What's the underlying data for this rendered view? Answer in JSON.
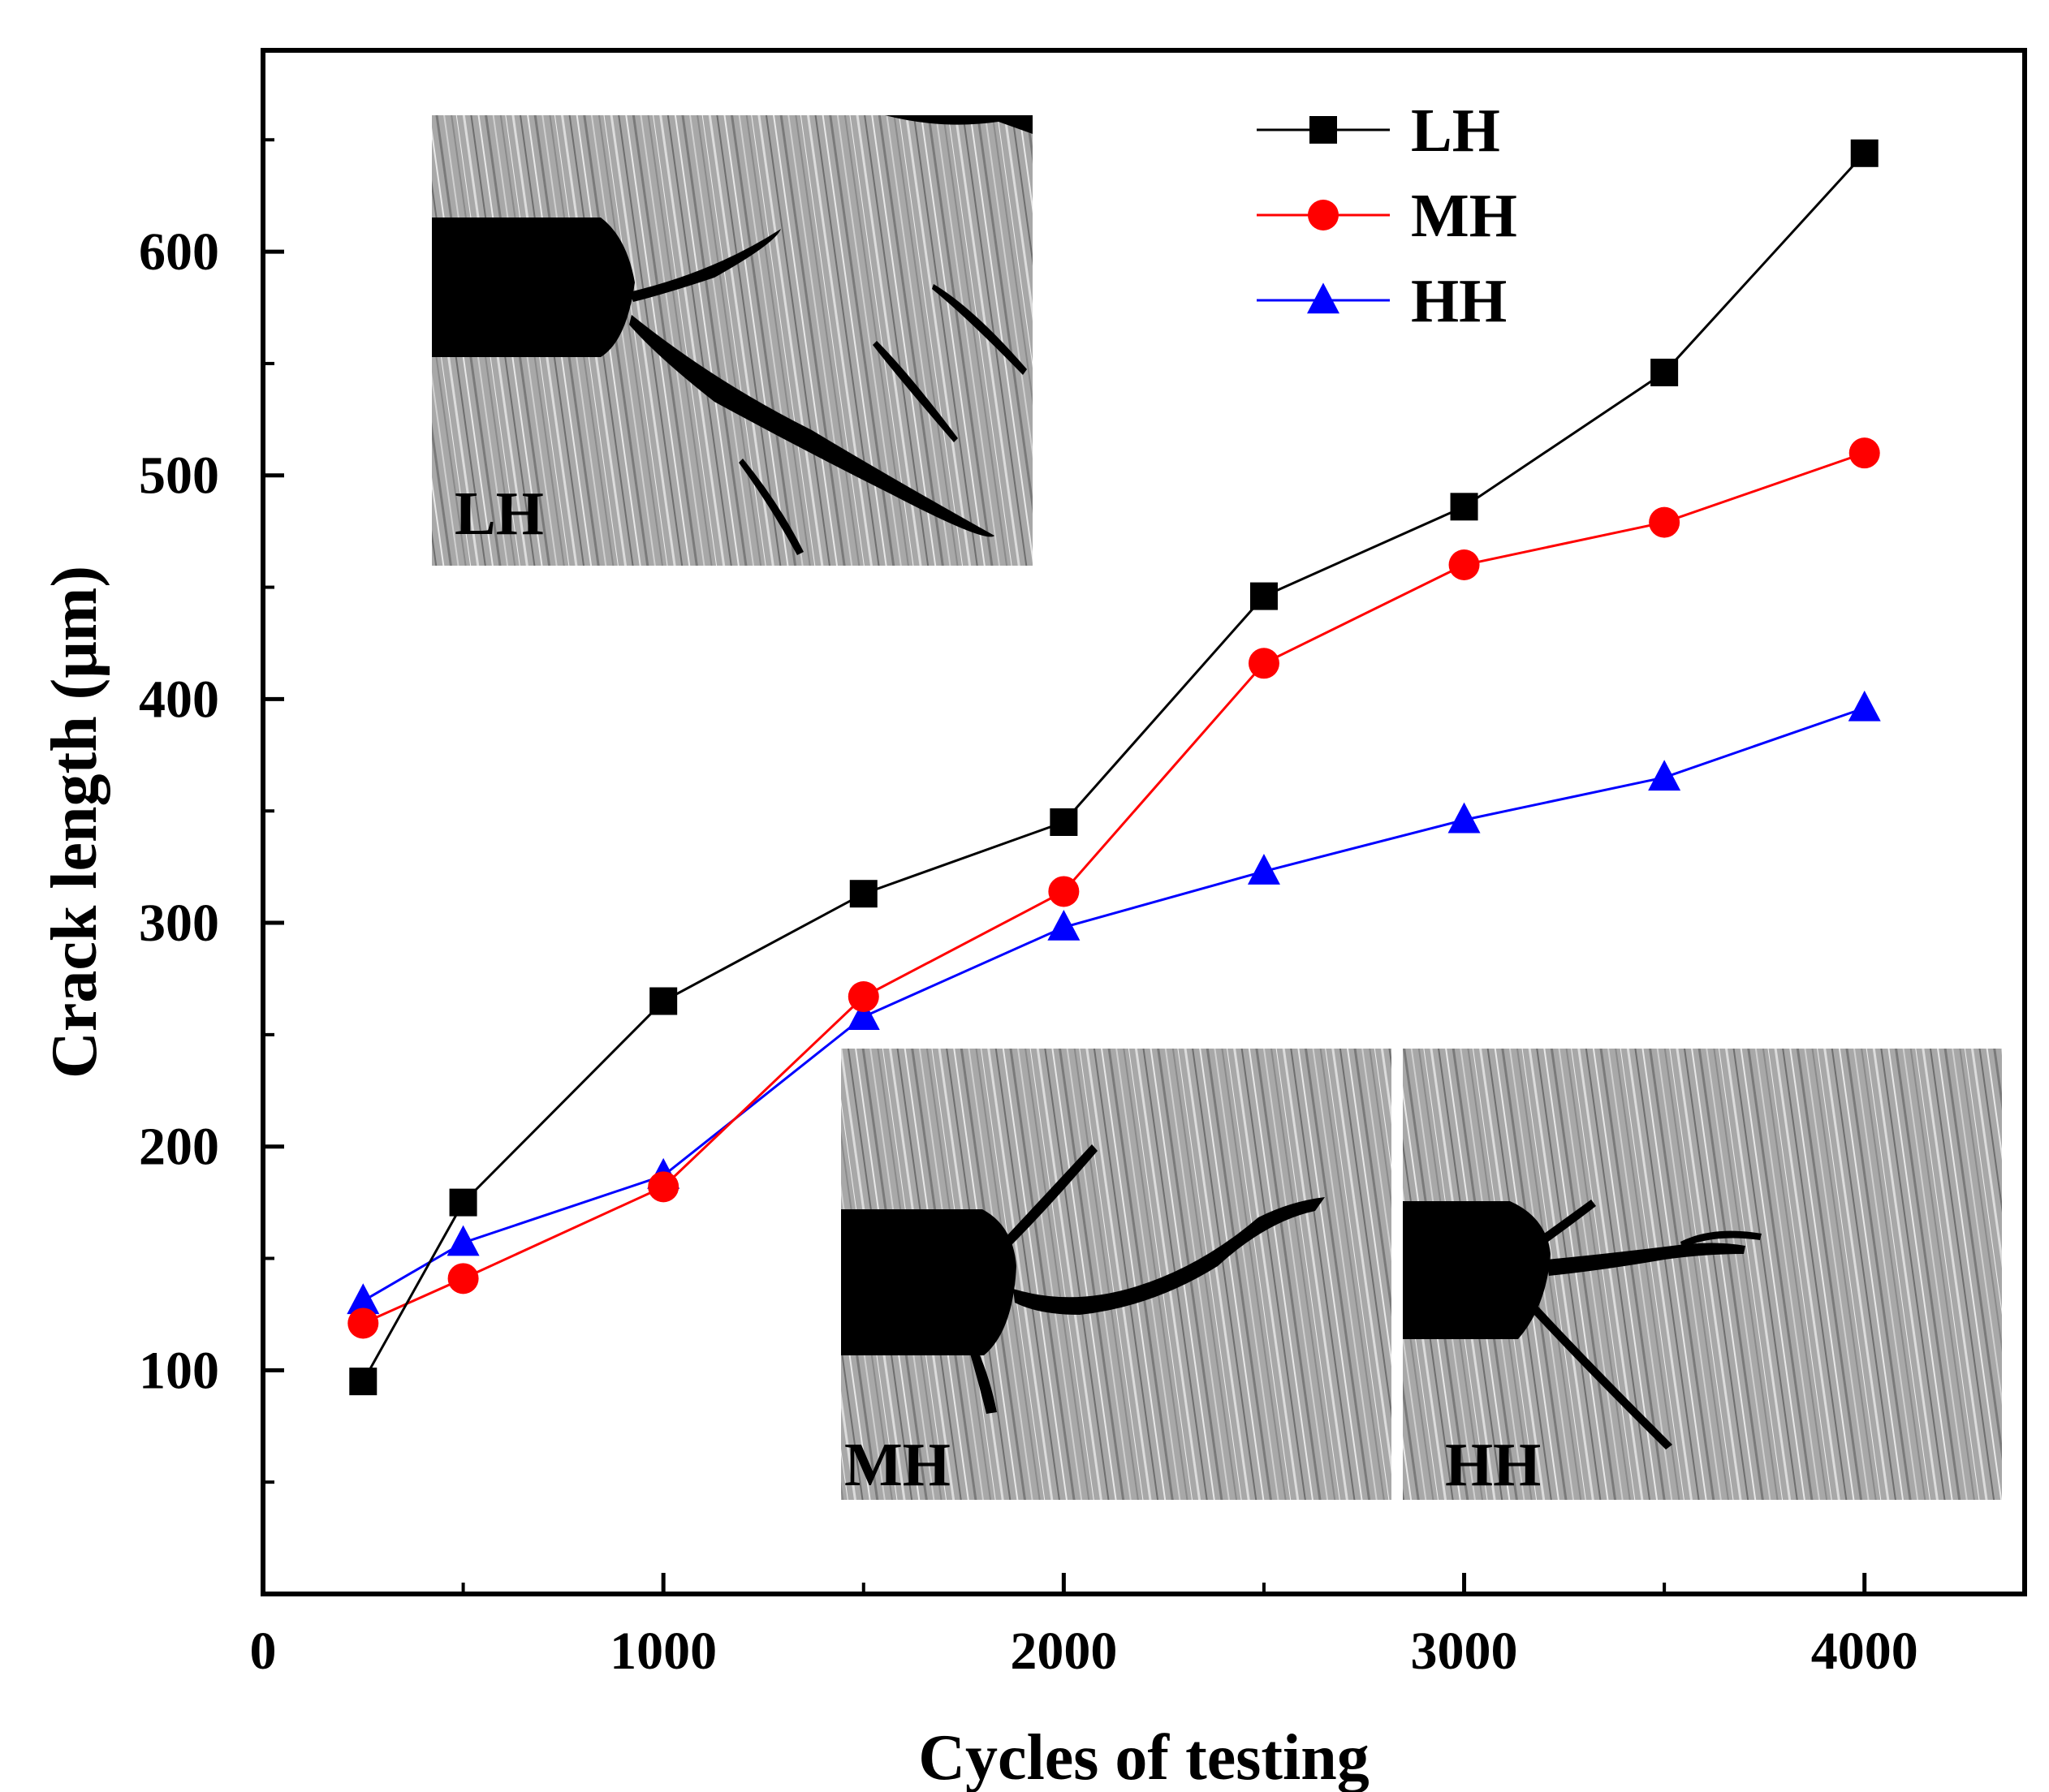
{
  "chart_data": {
    "type": "line",
    "title": "",
    "xlabel": "Cycles of testing",
    "ylabel": "Crack length (μm)",
    "xlim": [
      0,
      4400
    ],
    "ylim": [
      0,
      690
    ],
    "x_ticks": [
      0,
      1000,
      2000,
      3000,
      4000
    ],
    "x_tick_labels": [
      "0",
      "1000",
      "2000",
      "3000",
      "4000"
    ],
    "y_ticks": [
      100,
      200,
      300,
      400,
      500,
      600
    ],
    "y_tick_labels": [
      "100",
      "200",
      "300",
      "400",
      "500",
      "600"
    ],
    "x": [
      250,
      500,
      1000,
      1500,
      2000,
      2500,
      3000,
      3500,
      4000
    ],
    "grid": false,
    "legend_position": "top-right",
    "series": [
      {
        "name": "LH",
        "marker": "square",
        "color": "#000000",
        "values": [
          95,
          175,
          265,
          313,
          345,
          446,
          486,
          546,
          644
        ]
      },
      {
        "name": "MH",
        "marker": "circle",
        "color": "#ff0000",
        "values": [
          121,
          141,
          182,
          267,
          314,
          416,
          460,
          479,
          510
        ]
      },
      {
        "name": "HH",
        "marker": "triangle",
        "color": "#0000ff",
        "values": [
          131,
          157,
          187,
          258,
          298,
          323,
          346,
          365,
          396
        ]
      }
    ],
    "insets": [
      {
        "label": "LH",
        "description": "micrograph"
      },
      {
        "label": "MH",
        "description": "micrograph"
      },
      {
        "label": "HH",
        "description": "micrograph"
      }
    ]
  }
}
